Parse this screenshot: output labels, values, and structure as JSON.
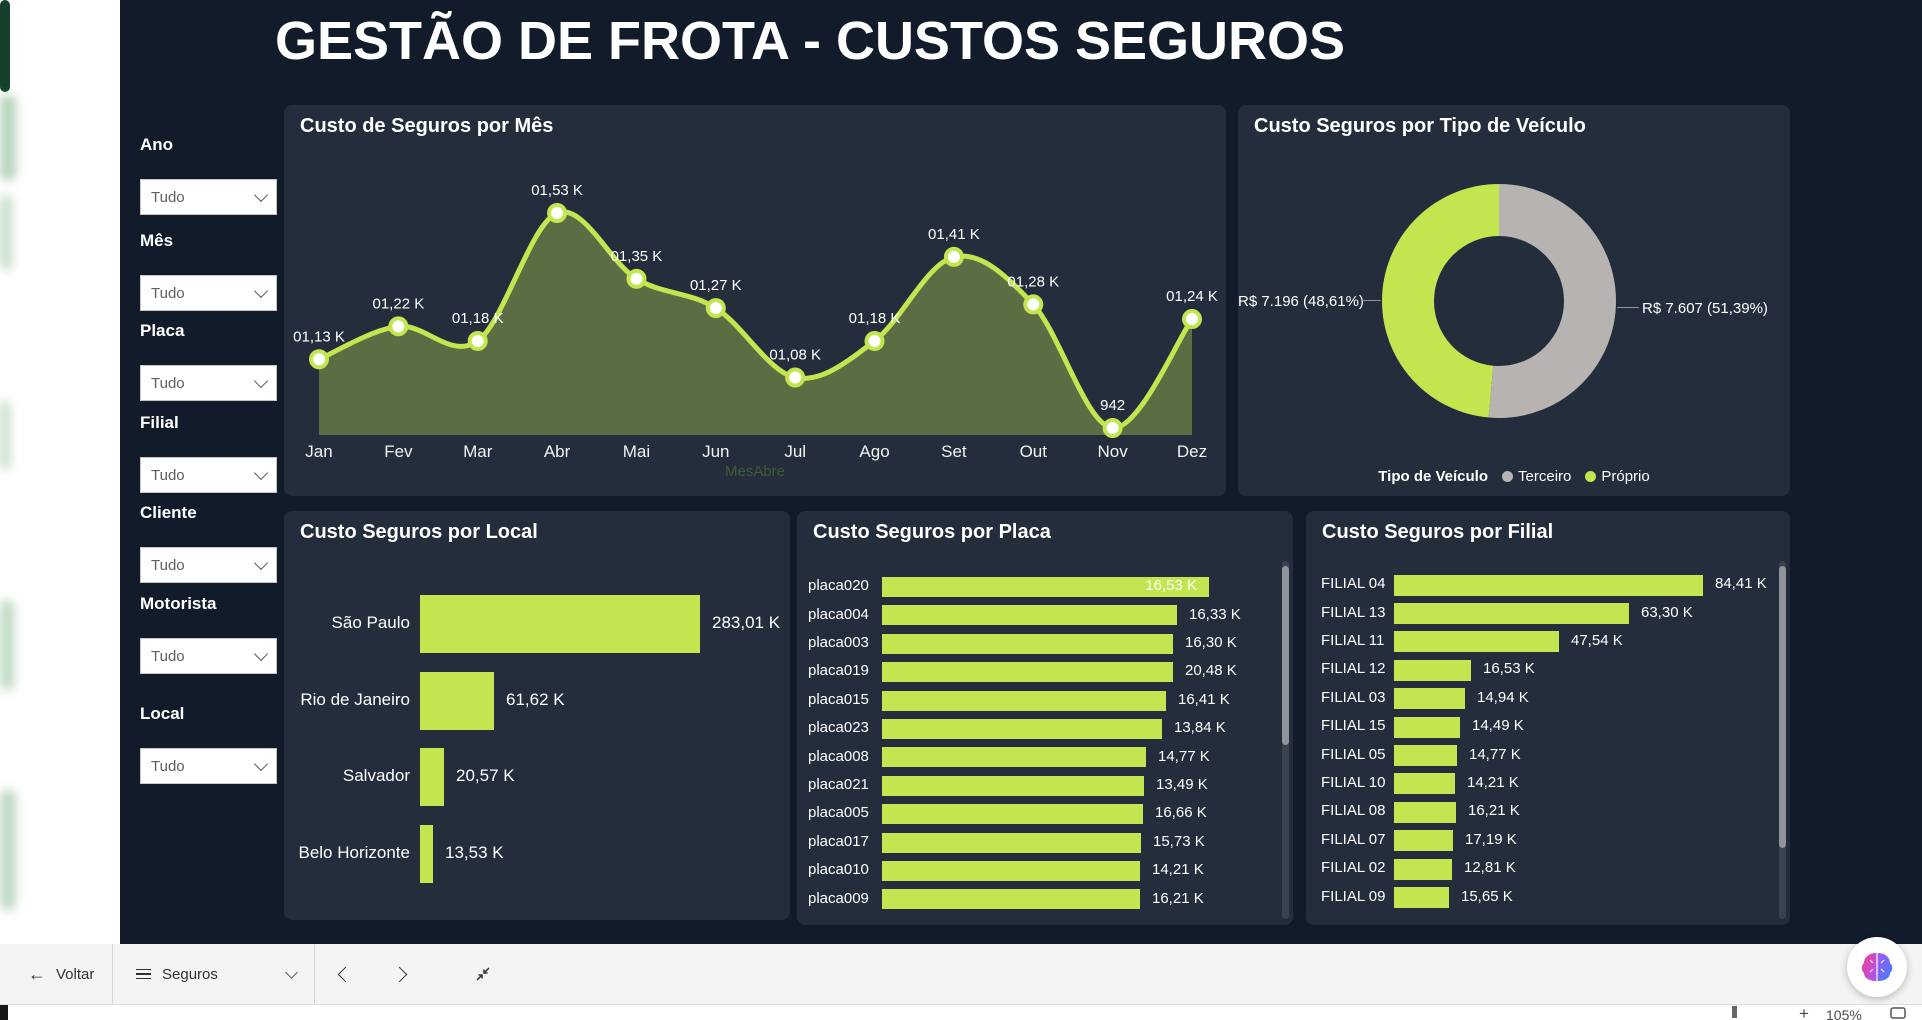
{
  "title": "GESTÃO DE FROTA - CUSTOS SEGUROS",
  "colors": {
    "lime": "#C3E650",
    "gray_slice": "#B6B3B0",
    "panel_bg": "#232D3C",
    "canvas_bg": "#121B2A",
    "area_fill": "rgba(195,230,80,0.35)"
  },
  "filters": {
    "items": [
      {
        "label": "Ano",
        "value": "Tudo"
      },
      {
        "label": "Mês",
        "value": "Tudo"
      },
      {
        "label": "Placa",
        "value": "Tudo"
      },
      {
        "label": "Filial",
        "value": "Tudo"
      },
      {
        "label": "Cliente",
        "value": "Tudo"
      },
      {
        "label": "Motorista",
        "value": "Tudo"
      },
      {
        "label": "Local",
        "value": "Tudo"
      }
    ]
  },
  "chart_data": [
    {
      "type": "area",
      "title": "Custo de Seguros por Mês",
      "categories": [
        "Jan",
        "Fev",
        "Mar",
        "Abr",
        "Mai",
        "Jun",
        "Jul",
        "Ago",
        "Set",
        "Out",
        "Nov",
        "Dez"
      ],
      "values": [
        1130,
        1220,
        1180,
        1530,
        1350,
        1270,
        1080,
        1180,
        1410,
        1280,
        942,
        1240
      ],
      "data_labels": [
        "01,13 K",
        "01,22 K",
        "01,18 K",
        "01,53 K",
        "01,35 K",
        "01,27 K",
        "01,08 K",
        "01,18 K",
        "01,41 K",
        "01,28 K",
        "942",
        "01,24 K"
      ],
      "xlabel": "MesAbre",
      "ylim": [
        942,
        1530
      ],
      "grid": false
    },
    {
      "type": "donut",
      "title": "Custo Seguros por Tipo de Veículo",
      "legend_title": "Tipo de Veículo",
      "legend_position": "bottom",
      "slices": [
        {
          "name": "Terceiro",
          "value": 7607,
          "pct": 51.39,
          "label": "R$ 7.607 (51,39%)",
          "color": "#B6B3B0"
        },
        {
          "name": "Próprio",
          "value": 7196,
          "pct": 48.61,
          "label": "R$ 7.196 (48,61%)",
          "color": "#C3E650"
        }
      ]
    },
    {
      "type": "bar",
      "title": "Custo Seguros por Local",
      "categories": [
        "São Paulo",
        "Rio de Janeiro",
        "Salvador",
        "Belo Horizonte"
      ],
      "values": [
        283.01,
        61.62,
        20.57,
        13.53
      ],
      "data_labels": [
        "283,01 K",
        "61,62 K",
        "20,57 K",
        "13,53 K"
      ]
    },
    {
      "type": "bar",
      "title": "Custo Seguros por Placa",
      "categories": [
        "placa020",
        "placa004",
        "placa003",
        "placa019",
        "placa015",
        "placa023",
        "placa008",
        "placa021",
        "placa005",
        "placa017",
        "placa010",
        "placa009"
      ],
      "values": [
        16.53,
        16.33,
        16.3,
        20.48,
        16.41,
        13.84,
        14.77,
        13.49,
        16.66,
        15.73,
        14.21,
        16.21
      ],
      "data_labels": [
        "16,53 K",
        "16,33 K",
        "16,30 K",
        "20,48 K",
        "16,41 K",
        "13,84 K",
        "14,77 K",
        "13,49 K",
        "16,66 K",
        "15,73 K",
        "14,21 K",
        "16,21 K"
      ]
    },
    {
      "type": "bar",
      "title": "Custo Seguros por Filial",
      "categories": [
        "FILIAL 04",
        "FILIAL 13",
        "FILIAL 11",
        "FILIAL 12",
        "FILIAL 03",
        "FILIAL 15",
        "FILIAL 05",
        "FILIAL 10",
        "FILIAL 08",
        "FILIAL 07",
        "FILIAL 02",
        "FILIAL 09"
      ],
      "values": [
        84.41,
        63.3,
        47.54,
        16.53,
        14.94,
        14.49,
        14.77,
        14.21,
        16.21,
        17.19,
        12.81,
        15.65
      ],
      "data_labels": [
        "84,41 K",
        "63,30 K",
        "47,54 K",
        "16,53 K",
        "14,94 K",
        "14,49 K",
        "14,77 K",
        "14,21 K",
        "16,21 K",
        "17,19 K",
        "12,81 K",
        "15,65 K"
      ]
    }
  ],
  "bottom_bar": {
    "back_icon": "←",
    "back_label": "Voltar",
    "page_selector_label": "Seguros",
    "zoom_plus": "+",
    "zoom_level": "105%"
  }
}
